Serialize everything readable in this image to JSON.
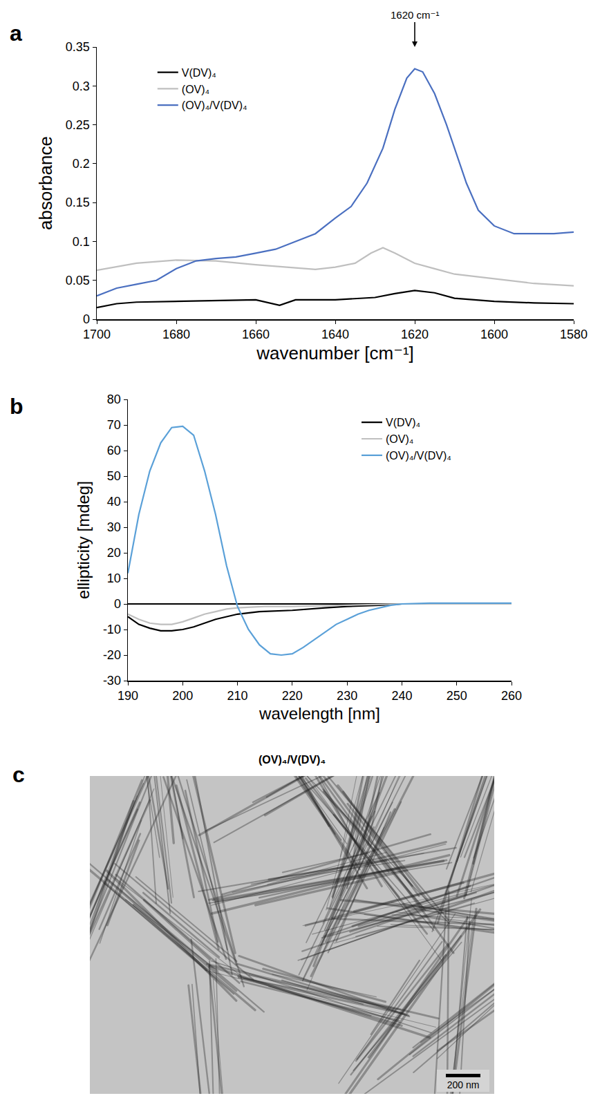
{
  "chart_data": [
    {
      "panel": "a",
      "type": "line",
      "x_label": "wavenumber [cm⁻¹]",
      "y_label": "absorbance",
      "xlim": [
        1700,
        1580
      ],
      "xticks": [
        1700,
        1680,
        1660,
        1640,
        1620,
        1600,
        1580
      ],
      "ylim": [
        0,
        0.35
      ],
      "yticks": [
        0,
        0.05,
        0.1,
        0.15,
        0.2,
        0.25,
        0.3,
        0.35
      ],
      "grid": false,
      "legend": "upper left",
      "annotations": [
        {
          "text": "1620 cm⁻¹",
          "x": 1620,
          "y": 0.35
        }
      ],
      "series": [
        {
          "name": "V(DV)₄",
          "color": "#000000",
          "x": [
            1700,
            1695,
            1690,
            1680,
            1670,
            1660,
            1654,
            1650,
            1640,
            1630,
            1625,
            1620,
            1615,
            1610,
            1600,
            1590,
            1580
          ],
          "values": [
            0.015,
            0.02,
            0.022,
            0.023,
            0.024,
            0.025,
            0.018,
            0.025,
            0.025,
            0.028,
            0.033,
            0.037,
            0.034,
            0.027,
            0.023,
            0.021,
            0.02
          ]
        },
        {
          "name": "(OV)₄",
          "color": "#bfbfbf",
          "x": [
            1700,
            1690,
            1680,
            1670,
            1660,
            1650,
            1645,
            1640,
            1635,
            1631,
            1628,
            1625,
            1620,
            1615,
            1610,
            1600,
            1590,
            1580
          ],
          "values": [
            0.063,
            0.072,
            0.076,
            0.075,
            0.07,
            0.066,
            0.064,
            0.067,
            0.072,
            0.085,
            0.092,
            0.085,
            0.072,
            0.065,
            0.058,
            0.052,
            0.046,
            0.043
          ]
        },
        {
          "name": "(OV)₄/V(DV)₄",
          "color": "#4a6fc0",
          "x": [
            1700,
            1695,
            1690,
            1685,
            1680,
            1675,
            1670,
            1665,
            1660,
            1655,
            1650,
            1645,
            1640,
            1636,
            1632,
            1628,
            1625,
            1622,
            1620,
            1618,
            1615,
            1612,
            1610,
            1607,
            1604,
            1600,
            1595,
            1590,
            1585,
            1580
          ],
          "values": [
            0.03,
            0.04,
            0.045,
            0.05,
            0.065,
            0.075,
            0.078,
            0.08,
            0.085,
            0.09,
            0.1,
            0.11,
            0.13,
            0.145,
            0.175,
            0.22,
            0.27,
            0.31,
            0.322,
            0.318,
            0.29,
            0.25,
            0.22,
            0.175,
            0.14,
            0.12,
            0.11,
            0.11,
            0.11,
            0.112
          ]
        }
      ]
    },
    {
      "panel": "b",
      "type": "line",
      "x_label": "wavelength [nm]",
      "y_label": "ellipticity [mdeg]",
      "xlim": [
        190,
        260
      ],
      "xticks": [
        190,
        200,
        210,
        220,
        230,
        240,
        250,
        260
      ],
      "ylim": [
        -30,
        80
      ],
      "yticks": [
        -30,
        -20,
        -10,
        0,
        10,
        20,
        30,
        40,
        50,
        60,
        70,
        80
      ],
      "grid": false,
      "legend": "upper right",
      "series": [
        {
          "name": "V(DV)₄",
          "color": "#000000",
          "x": [
            190,
            192,
            194,
            196,
            198,
            200,
            202,
            204,
            206,
            208,
            210,
            214,
            220,
            226,
            230,
            236,
            240,
            260
          ],
          "values": [
            -5,
            -8,
            -9.5,
            -10.5,
            -10.5,
            -10,
            -9,
            -7.5,
            -6,
            -5,
            -4,
            -3,
            -2.5,
            -1.5,
            -1,
            -0.5,
            0,
            0
          ]
        },
        {
          "name": "(OV)₄",
          "color": "#bfbfbf",
          "x": [
            190,
            192,
            194,
            196,
            198,
            200,
            202,
            204,
            206,
            208,
            210,
            215,
            220,
            230,
            240,
            260
          ],
          "values": [
            -4,
            -6,
            -7.5,
            -8,
            -8,
            -7,
            -5.5,
            -4,
            -3,
            -2,
            -1.5,
            -1,
            -1,
            -0.5,
            0,
            0
          ]
        },
        {
          "name": "(OV)₄/V(DV)₄",
          "color": "#5aa0d8",
          "x": [
            190,
            192,
            194,
            196,
            198,
            200,
            202,
            204,
            206,
            208,
            210,
            212,
            214,
            216,
            218,
            220,
            222,
            224,
            226,
            228,
            230,
            232,
            234,
            236,
            238,
            240,
            245,
            250,
            260
          ],
          "values": [
            12,
            35,
            52,
            63,
            69,
            69.5,
            66,
            52,
            35,
            15,
            -1,
            -10,
            -16,
            -19.5,
            -20,
            -19.5,
            -17,
            -14,
            -11,
            -8,
            -6,
            -4,
            -2.5,
            -1.5,
            -0.5,
            0,
            0.3,
            0.3,
            0.3
          ]
        }
      ]
    }
  ],
  "image_panel": {
    "panel": "c",
    "title": "(OV)₄/V(DV)₄",
    "scale_bar": "200 nm"
  }
}
